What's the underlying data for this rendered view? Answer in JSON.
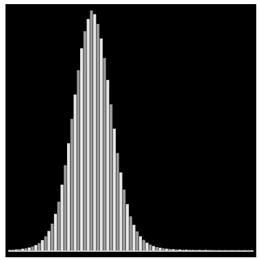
{
  "colors": {
    "background": "#000000",
    "bar_light": "#e8e8e8",
    "bar_dark": "#9a9a9a",
    "baseline": "#d0d0d0",
    "frame": "#ffffff"
  },
  "chart_data": {
    "type": "bar",
    "title": "",
    "xlabel": "",
    "ylabel": "",
    "grid": false,
    "legend": "none",
    "xlim": [
      0,
      150
    ],
    "ylim": [
      0,
      1
    ],
    "x": [
      0,
      2,
      4,
      6,
      8,
      10,
      12,
      14,
      16,
      18,
      20,
      22,
      24,
      26,
      28,
      30,
      32,
      34,
      36,
      38,
      40,
      42,
      44,
      46,
      48,
      50,
      52,
      54,
      56,
      58,
      60,
      62,
      64,
      66,
      68,
      70,
      72,
      74,
      76,
      78,
      80,
      82,
      84,
      86,
      88,
      90,
      92,
      94,
      96,
      98,
      100,
      102,
      104,
      106,
      108,
      110,
      112,
      114,
      116,
      118,
      120,
      122,
      124,
      126,
      128,
      130,
      132,
      134,
      136,
      138,
      140,
      142,
      144,
      146,
      148
    ],
    "values": [
      0.002,
      0.003,
      0.004,
      0.005,
      0.007,
      0.009,
      0.012,
      0.016,
      0.022,
      0.03,
      0.042,
      0.058,
      0.08,
      0.11,
      0.15,
      0.2,
      0.27,
      0.35,
      0.44,
      0.54,
      0.64,
      0.74,
      0.83,
      0.9,
      0.95,
      0.985,
      0.97,
      0.93,
      0.87,
      0.79,
      0.7,
      0.6,
      0.5,
      0.4,
      0.32,
      0.25,
      0.19,
      0.14,
      0.105,
      0.078,
      0.058,
      0.043,
      0.032,
      0.024,
      0.018,
      0.014,
      0.011,
      0.009,
      0.007,
      0.006,
      0.005,
      0.004,
      0.004,
      0.003,
      0.003,
      0.003,
      0.002,
      0.002,
      0.002,
      0.002,
      0.002,
      0.002,
      0.001,
      0.001,
      0.001,
      0.001,
      0.001,
      0.001,
      0.001,
      0.001,
      0.001,
      0.001,
      0.001,
      0.001,
      0.001
    ]
  }
}
